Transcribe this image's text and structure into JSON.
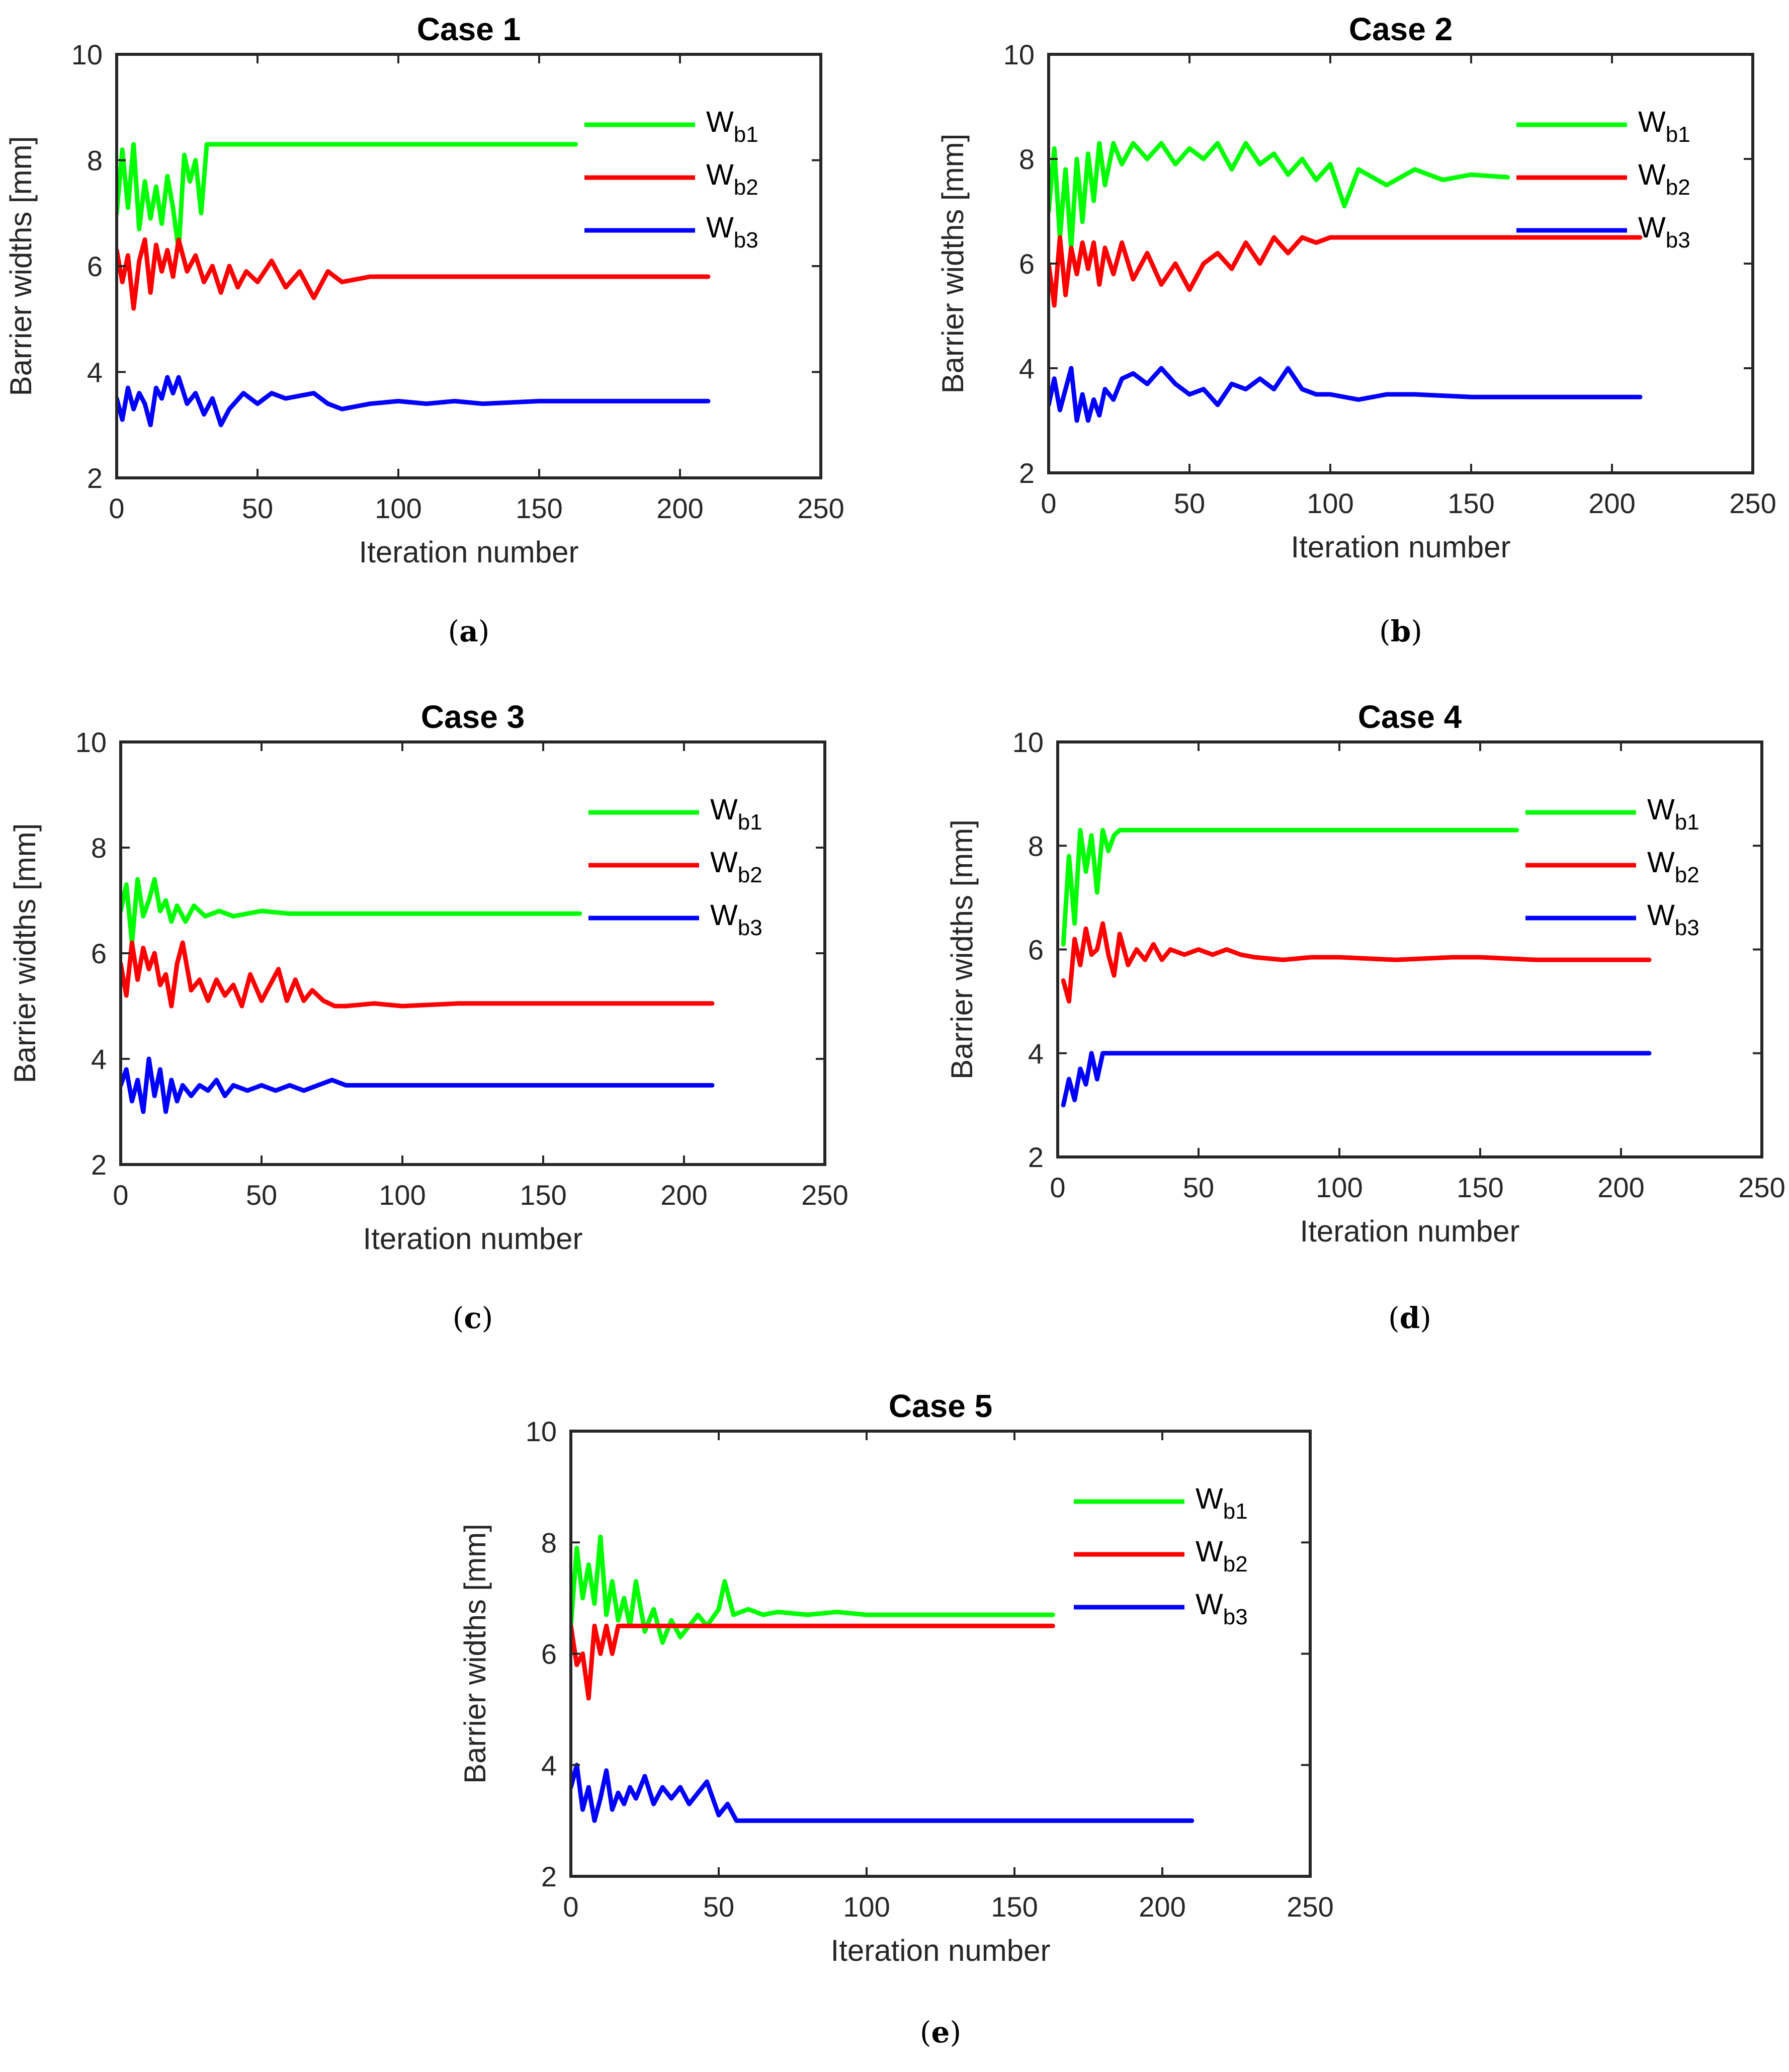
{
  "colors": {
    "wb1": "#00ff00",
    "wb2": "#ff0000",
    "wb3": "#0000ff",
    "axis": "#262626"
  },
  "labels": {
    "xlabel": "Iteration number",
    "ylabel": "Barrier widths [mm]"
  },
  "chart_data": [
    {
      "type": "line",
      "title": "Case 1",
      "caption_letter": "a",
      "xlabel": "Iteration number",
      "ylabel": "Barrier widths [mm]",
      "xlim": [
        0,
        250
      ],
      "ylim": [
        2,
        10
      ],
      "xticks": [
        "0",
        "50",
        "100",
        "150",
        "200",
        "250"
      ],
      "yticks": [
        "2",
        "4",
        "6",
        "8",
        "10"
      ],
      "grid": false,
      "legend_position": "top-right",
      "series": [
        {
          "name": "Wb1",
          "name_main": "W",
          "name_sub": "b1",
          "color": "#00ff00",
          "x": [
            0,
            2,
            4,
            6,
            8,
            10,
            12,
            14,
            16,
            18,
            20,
            22,
            24,
            26,
            28,
            30,
            32,
            35,
            40,
            60,
            100,
            163
          ],
          "y": [
            7.0,
            8.2,
            7.1,
            8.3,
            6.7,
            7.6,
            6.9,
            7.5,
            6.8,
            7.7,
            7.1,
            6.3,
            8.1,
            7.6,
            8.0,
            7.0,
            8.3,
            8.3,
            8.3,
            8.3,
            8.3,
            8.3
          ]
        },
        {
          "name": "Wb2",
          "name_main": "W",
          "name_sub": "b2",
          "color": "#ff0000",
          "x": [
            0,
            2,
            4,
            6,
            8,
            10,
            12,
            14,
            16,
            18,
            20,
            22,
            25,
            28,
            31,
            34,
            37,
            40,
            43,
            46,
            50,
            55,
            60,
            65,
            70,
            75,
            80,
            90,
            100,
            110,
            120,
            130,
            150,
            180,
            210
          ],
          "y": [
            6.3,
            5.7,
            6.2,
            5.2,
            6.1,
            6.5,
            5.5,
            6.4,
            5.9,
            6.3,
            5.8,
            6.5,
            5.9,
            6.2,
            5.7,
            6.0,
            5.5,
            6.0,
            5.6,
            5.9,
            5.7,
            6.1,
            5.6,
            5.9,
            5.4,
            5.9,
            5.7,
            5.8,
            5.8,
            5.8,
            5.8,
            5.8,
            5.8,
            5.8,
            5.8
          ]
        },
        {
          "name": "Wb3",
          "name_main": "W",
          "name_sub": "b3",
          "color": "#0000ff",
          "x": [
            0,
            2,
            4,
            6,
            8,
            10,
            12,
            14,
            16,
            18,
            20,
            22,
            25,
            28,
            31,
            34,
            37,
            40,
            45,
            50,
            55,
            60,
            70,
            75,
            80,
            90,
            100,
            110,
            120,
            130,
            150,
            180,
            210
          ],
          "y": [
            3.5,
            3.1,
            3.7,
            3.3,
            3.6,
            3.4,
            3.0,
            3.7,
            3.5,
            3.9,
            3.6,
            3.9,
            3.4,
            3.6,
            3.2,
            3.5,
            3.0,
            3.3,
            3.6,
            3.4,
            3.6,
            3.5,
            3.6,
            3.4,
            3.3,
            3.4,
            3.45,
            3.4,
            3.45,
            3.4,
            3.45,
            3.45,
            3.45
          ]
        }
      ]
    },
    {
      "type": "line",
      "title": "Case 2",
      "caption_letter": "b",
      "xlabel": "Iteration number",
      "ylabel": "Barrier widths [mm]",
      "xlim": [
        0,
        250
      ],
      "ylim": [
        2,
        10
      ],
      "xticks": [
        "0",
        "50",
        "100",
        "150",
        "200",
        "250"
      ],
      "yticks": [
        "2",
        "4",
        "6",
        "8",
        "10"
      ],
      "grid": false,
      "legend_position": "top-right",
      "series": [
        {
          "name": "Wb1",
          "name_main": "W",
          "name_sub": "b1",
          "color": "#00ff00",
          "x": [
            0,
            2,
            4,
            6,
            8,
            10,
            12,
            14,
            16,
            18,
            20,
            23,
            26,
            30,
            35,
            40,
            45,
            50,
            55,
            60,
            65,
            70,
            75,
            80,
            85,
            90,
            95,
            100,
            105,
            110,
            120,
            130,
            140,
            150,
            163
          ],
          "y": [
            7.0,
            8.2,
            6.5,
            7.8,
            6.3,
            8.0,
            6.8,
            8.1,
            7.2,
            8.3,
            7.5,
            8.3,
            7.9,
            8.3,
            8.0,
            8.3,
            7.9,
            8.2,
            8.0,
            8.3,
            7.8,
            8.3,
            7.9,
            8.1,
            7.7,
            8.0,
            7.6,
            7.9,
            7.1,
            7.8,
            7.5,
            7.8,
            7.6,
            7.7,
            7.65
          ]
        },
        {
          "name": "Wb2",
          "name_main": "W",
          "name_sub": "b2",
          "color": "#ff0000",
          "x": [
            0,
            2,
            4,
            6,
            8,
            10,
            12,
            14,
            16,
            18,
            20,
            23,
            26,
            30,
            35,
            40,
            45,
            50,
            55,
            60,
            65,
            70,
            75,
            80,
            85,
            90,
            95,
            100,
            110,
            120,
            140,
            160,
            210
          ],
          "y": [
            6.0,
            5.2,
            6.5,
            5.4,
            6.3,
            5.8,
            6.4,
            5.9,
            6.4,
            5.6,
            6.3,
            5.8,
            6.4,
            5.7,
            6.2,
            5.6,
            6.0,
            5.5,
            6.0,
            6.2,
            5.9,
            6.4,
            6.0,
            6.5,
            6.2,
            6.5,
            6.4,
            6.5,
            6.5,
            6.5,
            6.5,
            6.5,
            6.5
          ]
        },
        {
          "name": "Wb3",
          "name_main": "W",
          "name_sub": "b3",
          "color": "#0000ff",
          "x": [
            0,
            2,
            4,
            6,
            8,
            10,
            12,
            14,
            16,
            18,
            20,
            23,
            26,
            30,
            35,
            40,
            45,
            50,
            55,
            60,
            65,
            70,
            75,
            80,
            85,
            90,
            95,
            100,
            110,
            120,
            130,
            150,
            180,
            210
          ],
          "y": [
            3.3,
            3.8,
            3.2,
            3.6,
            4.0,
            3.0,
            3.5,
            3.0,
            3.4,
            3.1,
            3.6,
            3.4,
            3.8,
            3.9,
            3.7,
            4.0,
            3.7,
            3.5,
            3.6,
            3.3,
            3.7,
            3.6,
            3.8,
            3.6,
            4.0,
            3.6,
            3.5,
            3.5,
            3.4,
            3.5,
            3.5,
            3.45,
            3.45,
            3.45
          ]
        }
      ]
    },
    {
      "type": "line",
      "title": "Case 3",
      "caption_letter": "c",
      "xlabel": "Iteration number",
      "ylabel": "Barrier widths [mm]",
      "xlim": [
        0,
        250
      ],
      "ylim": [
        2,
        10
      ],
      "xticks": [
        "0",
        "50",
        "100",
        "150",
        "200",
        "250"
      ],
      "yticks": [
        "2",
        "4",
        "6",
        "8",
        "10"
      ],
      "grid": false,
      "legend_position": "top-right",
      "series": [
        {
          "name": "Wb1",
          "name_main": "W",
          "name_sub": "b1",
          "color": "#00ff00",
          "x": [
            0,
            2,
            4,
            6,
            8,
            10,
            12,
            14,
            16,
            18,
            20,
            23,
            26,
            30,
            35,
            40,
            50,
            60,
            80,
            100,
            130,
            163
          ],
          "y": [
            6.8,
            7.3,
            6.2,
            7.4,
            6.7,
            7.0,
            7.4,
            6.8,
            7.0,
            6.6,
            6.9,
            6.6,
            6.9,
            6.7,
            6.8,
            6.7,
            6.8,
            6.75,
            6.75,
            6.75,
            6.75,
            6.75
          ]
        },
        {
          "name": "Wb2",
          "name_main": "W",
          "name_sub": "b2",
          "color": "#ff0000",
          "x": [
            0,
            2,
            4,
            6,
            8,
            10,
            12,
            14,
            16,
            18,
            20,
            22,
            25,
            28,
            31,
            34,
            37,
            40,
            43,
            46,
            50,
            53,
            56,
            59,
            62,
            65,
            68,
            72,
            76,
            80,
            90,
            100,
            120,
            150,
            210
          ],
          "y": [
            5.8,
            5.2,
            6.2,
            5.5,
            6.1,
            5.7,
            6.0,
            5.4,
            5.6,
            5.0,
            5.8,
            6.2,
            5.3,
            5.5,
            5.1,
            5.5,
            5.2,
            5.4,
            5.0,
            5.6,
            5.1,
            5.4,
            5.7,
            5.1,
            5.5,
            5.1,
            5.3,
            5.1,
            5.0,
            5.0,
            5.05,
            5.0,
            5.05,
            5.05,
            5.05
          ]
        },
        {
          "name": "Wb3",
          "name_main": "W",
          "name_sub": "b3",
          "color": "#0000ff",
          "x": [
            0,
            2,
            4,
            6,
            8,
            10,
            12,
            14,
            16,
            18,
            20,
            22,
            25,
            28,
            31,
            34,
            37,
            40,
            45,
            50,
            55,
            60,
            65,
            70,
            75,
            80,
            90,
            100,
            120,
            150,
            210
          ],
          "y": [
            3.5,
            3.8,
            3.2,
            3.6,
            3.0,
            4.0,
            3.3,
            3.8,
            3.0,
            3.6,
            3.2,
            3.5,
            3.3,
            3.5,
            3.4,
            3.6,
            3.3,
            3.5,
            3.4,
            3.5,
            3.4,
            3.5,
            3.4,
            3.5,
            3.6,
            3.5,
            3.5,
            3.5,
            3.5,
            3.5,
            3.5
          ]
        }
      ]
    },
    {
      "type": "line",
      "title": "Case 4",
      "caption_letter": "d",
      "xlabel": "Iteration number",
      "ylabel": "Barrier widths [mm]",
      "xlim": [
        0,
        250
      ],
      "ylim": [
        2,
        10
      ],
      "xticks": [
        "0",
        "50",
        "100",
        "150",
        "200",
        "250"
      ],
      "yticks": [
        "2",
        "4",
        "6",
        "8",
        "10"
      ],
      "grid": false,
      "legend_position": "top-right",
      "series": [
        {
          "name": "Wb1",
          "name_main": "W",
          "name_sub": "b1",
          "color": "#00ff00",
          "x": [
            2,
            4,
            6,
            8,
            10,
            12,
            14,
            16,
            18,
            20,
            22,
            25,
            30,
            40,
            60,
            100,
            163
          ],
          "y": [
            6.1,
            7.8,
            6.5,
            8.3,
            7.5,
            8.2,
            7.1,
            8.3,
            7.9,
            8.2,
            8.3,
            8.3,
            8.3,
            8.3,
            8.3,
            8.3,
            8.3
          ]
        },
        {
          "name": "Wb2",
          "name_main": "W",
          "name_sub": "b2",
          "color": "#ff0000",
          "x": [
            2,
            4,
            6,
            8,
            10,
            12,
            14,
            16,
            18,
            20,
            22,
            25,
            28,
            31,
            34,
            37,
            40,
            45,
            50,
            55,
            60,
            65,
            70,
            80,
            90,
            100,
            120,
            140,
            150,
            170,
            190,
            210
          ],
          "y": [
            5.4,
            5.0,
            6.2,
            5.7,
            6.4,
            5.9,
            6.0,
            6.5,
            5.9,
            5.5,
            6.3,
            5.7,
            6.0,
            5.8,
            6.1,
            5.8,
            6.0,
            5.9,
            6.0,
            5.9,
            6.0,
            5.9,
            5.85,
            5.8,
            5.85,
            5.85,
            5.8,
            5.85,
            5.85,
            5.8,
            5.8,
            5.8
          ]
        },
        {
          "name": "Wb3",
          "name_main": "W",
          "name_sub": "b3",
          "color": "#0000ff",
          "x": [
            2,
            4,
            6,
            8,
            10,
            12,
            14,
            16,
            18,
            20,
            30,
            60,
            100,
            160,
            210
          ],
          "y": [
            3.0,
            3.5,
            3.1,
            3.7,
            3.4,
            4.0,
            3.5,
            4.0,
            4.0,
            4.0,
            4.0,
            4.0,
            4.0,
            4.0,
            4.0
          ]
        }
      ]
    },
    {
      "type": "line",
      "title": "Case 5",
      "caption_letter": "e",
      "xlabel": "Iteration number",
      "ylabel": "Barrier widths [mm]",
      "xlim": [
        0,
        250
      ],
      "ylim": [
        2,
        10
      ],
      "xticks": [
        "0",
        "50",
        "100",
        "150",
        "200",
        "250"
      ],
      "yticks": [
        "2",
        "4",
        "6",
        "8",
        "10"
      ],
      "grid": false,
      "legend_position": "top-right",
      "series": [
        {
          "name": "Wb1",
          "name_main": "W",
          "name_sub": "b1",
          "color": "#00ff00",
          "x": [
            0,
            2,
            4,
            6,
            8,
            10,
            12,
            14,
            16,
            18,
            20,
            22,
            25,
            28,
            31,
            34,
            37,
            40,
            43,
            46,
            50,
            52,
            55,
            60,
            65,
            70,
            80,
            90,
            100,
            120,
            140,
            163
          ],
          "y": [
            6.5,
            7.9,
            7.0,
            7.6,
            6.9,
            8.1,
            6.7,
            7.3,
            6.6,
            7.0,
            6.5,
            7.3,
            6.4,
            6.8,
            6.2,
            6.6,
            6.3,
            6.5,
            6.7,
            6.5,
            6.8,
            7.3,
            6.7,
            6.8,
            6.7,
            6.75,
            6.7,
            6.75,
            6.7,
            6.7,
            6.7,
            6.7
          ]
        },
        {
          "name": "Wb2",
          "name_main": "W",
          "name_sub": "b2",
          "color": "#ff0000",
          "x": [
            0,
            2,
            4,
            6,
            8,
            10,
            12,
            14,
            16,
            18,
            20,
            25,
            30,
            40,
            60,
            100,
            163
          ],
          "y": [
            6.5,
            5.8,
            6.0,
            5.2,
            6.5,
            6.0,
            6.5,
            6.0,
            6.5,
            6.5,
            6.5,
            6.5,
            6.5,
            6.5,
            6.5,
            6.5,
            6.5
          ]
        },
        {
          "name": "Wb3",
          "name_main": "W",
          "name_sub": "b3",
          "color": "#0000ff",
          "x": [
            0,
            2,
            4,
            6,
            8,
            10,
            12,
            14,
            16,
            18,
            20,
            22,
            25,
            28,
            31,
            34,
            37,
            40,
            43,
            46,
            50,
            53,
            56,
            60,
            80,
            100,
            150,
            210
          ],
          "y": [
            3.6,
            4.0,
            3.2,
            3.6,
            3.0,
            3.4,
            3.9,
            3.2,
            3.5,
            3.3,
            3.6,
            3.4,
            3.8,
            3.3,
            3.6,
            3.4,
            3.6,
            3.3,
            3.5,
            3.7,
            3.1,
            3.3,
            3.0,
            3.0,
            3.0,
            3.0,
            3.0,
            3.0
          ]
        }
      ]
    }
  ]
}
